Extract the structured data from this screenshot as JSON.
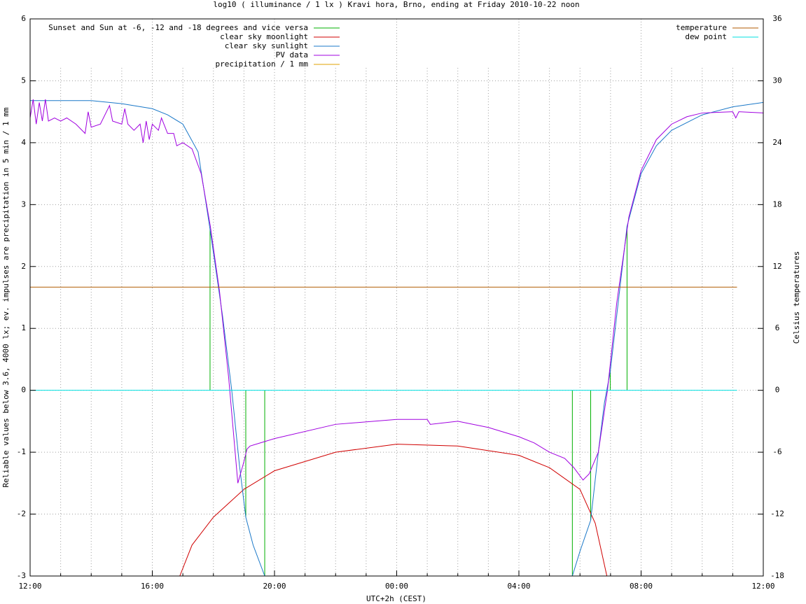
{
  "chart_data": {
    "type": "line",
    "title": "log10 ( illuminance / 1 lx ) Kravi hora, Brno, ending at Friday 2010-10-22 noon",
    "x_label": "UTC+2h (CEST)",
    "y_label": "Reliable values below 3.6, 4000 lx; ev. impulses are precipitation in 5 min / 1 mm",
    "y2_label": "Celsius temperatures",
    "xlim": [
      0,
      24
    ],
    "xticks": [
      {
        "value": 0,
        "label": "12:00"
      },
      {
        "value": 4,
        "label": "16:00"
      },
      {
        "value": 8,
        "label": "20:00"
      },
      {
        "value": 12,
        "label": "00:00"
      },
      {
        "value": 16,
        "label": "04:00"
      },
      {
        "value": 20,
        "label": "08:00"
      },
      {
        "value": 24,
        "label": "12:00"
      }
    ],
    "xminorticks": [
      1,
      2,
      3,
      5,
      6,
      7,
      9,
      10,
      11,
      13,
      14,
      15,
      17,
      18,
      19,
      21,
      22,
      23
    ],
    "ylim": [
      -3,
      6
    ],
    "yticks": [
      -3,
      -2,
      -1,
      0,
      1,
      2,
      3,
      4,
      5,
      6
    ],
    "y2lim": [
      -18,
      36
    ],
    "y2ticks": [
      -18,
      -12,
      -6,
      0,
      6,
      12,
      18,
      24,
      30,
      36
    ],
    "grid": true,
    "legend_position": "top-left",
    "y2_legend_position": "top-right",
    "series": [
      {
        "name": "Sunset and Sun at -6, -12 and -18 degrees and vice versa",
        "color": "#00b000",
        "style": "impulses",
        "x": [
          5.89,
          7.06,
          7.68,
          17.75,
          18.35,
          18.99,
          19.54
        ],
        "values": [
          2.6,
          -2.05,
          -3,
          -3,
          -2.1,
          0.3,
          2.65
        ]
      },
      {
        "name": "clear sky moonlight",
        "color": "#d00000",
        "style": "line",
        "x": [
          4.9,
          5.3,
          6,
          7,
          8,
          10,
          12,
          14,
          16,
          17,
          18,
          18.5,
          18.88
        ],
        "values": [
          -3,
          -2.5,
          -2.05,
          -1.6,
          -1.3,
          -1.0,
          -0.87,
          -0.9,
          -1.05,
          -1.25,
          -1.6,
          -2.15,
          -3
        ]
      },
      {
        "name": "clear sky sunlight",
        "color": "#1a78c8",
        "style": "line",
        "x": [
          0,
          2,
          3,
          4,
          4.5,
          5,
          5.5,
          5.89,
          6.3,
          6.6,
          6.85,
          7.06,
          7.3,
          7.68,
          17.75,
          18.0,
          18.35,
          18.6,
          18.8,
          18.99,
          19.54,
          20,
          20.5,
          21,
          22,
          23,
          24
        ],
        "values": [
          4.68,
          4.68,
          4.63,
          4.55,
          4.45,
          4.3,
          3.85,
          2.6,
          1.2,
          0.0,
          -1.2,
          -2.05,
          -2.5,
          -3,
          -3,
          -2.6,
          -2.1,
          -1.0,
          -0.2,
          0.3,
          2.65,
          3.5,
          3.95,
          4.2,
          4.45,
          4.58,
          4.65
        ]
      },
      {
        "name": "PV data",
        "color": "#a000e0",
        "style": "line",
        "x": [
          0,
          0.1,
          0.2,
          0.3,
          0.4,
          0.5,
          0.6,
          0.8,
          1,
          1.2,
          1.5,
          1.8,
          1.9,
          2.0,
          2.3,
          2.6,
          2.7,
          3,
          3.1,
          3.2,
          3.4,
          3.6,
          3.7,
          3.8,
          3.9,
          4.0,
          4.2,
          4.3,
          4.5,
          4.7,
          4.8,
          5.0,
          5.3,
          5.6,
          5.9,
          6.2,
          6.5,
          6.8,
          7.0,
          7.1,
          7.2,
          8,
          10,
          12,
          13,
          13.1,
          14,
          15,
          16,
          16.5,
          17,
          17.5,
          17.8,
          18.1,
          18.3,
          18.6,
          18.9,
          19.2,
          19.6,
          20,
          20.5,
          21,
          21.5,
          22,
          23,
          23.1,
          23.2,
          24
        ],
        "values": [
          4.4,
          4.7,
          4.3,
          4.65,
          4.35,
          4.7,
          4.35,
          4.4,
          4.35,
          4.4,
          4.3,
          4.15,
          4.5,
          4.25,
          4.3,
          4.6,
          4.35,
          4.3,
          4.55,
          4.3,
          4.2,
          4.3,
          4.0,
          4.35,
          4.05,
          4.3,
          4.2,
          4.4,
          4.15,
          4.15,
          3.95,
          4.0,
          3.9,
          3.5,
          2.65,
          1.6,
          0.2,
          -1.5,
          -1.15,
          -0.95,
          -0.9,
          -0.78,
          -0.55,
          -0.47,
          -0.47,
          -0.55,
          -0.5,
          -0.6,
          -0.75,
          -0.85,
          -1.0,
          -1.1,
          -1.25,
          -1.45,
          -1.35,
          -1.0,
          0.0,
          1.4,
          2.8,
          3.55,
          4.05,
          4.3,
          4.42,
          4.48,
          4.5,
          4.4,
          4.5,
          4.48
        ]
      },
      {
        "name": "precipitation / 1 mm",
        "color": "#e0a000",
        "style": "impulses",
        "x": [],
        "values": []
      },
      {
        "name": "temperature",
        "color": "#b05a00",
        "style": "line",
        "axis": "y2",
        "x": [
          0,
          23.14
        ],
        "values": [
          10,
          10
        ]
      },
      {
        "name": "dew point",
        "color": "#00e0e0",
        "style": "line",
        "axis": "y2",
        "x": [
          0,
          23.14
        ],
        "values": [
          0,
          0
        ]
      }
    ]
  }
}
